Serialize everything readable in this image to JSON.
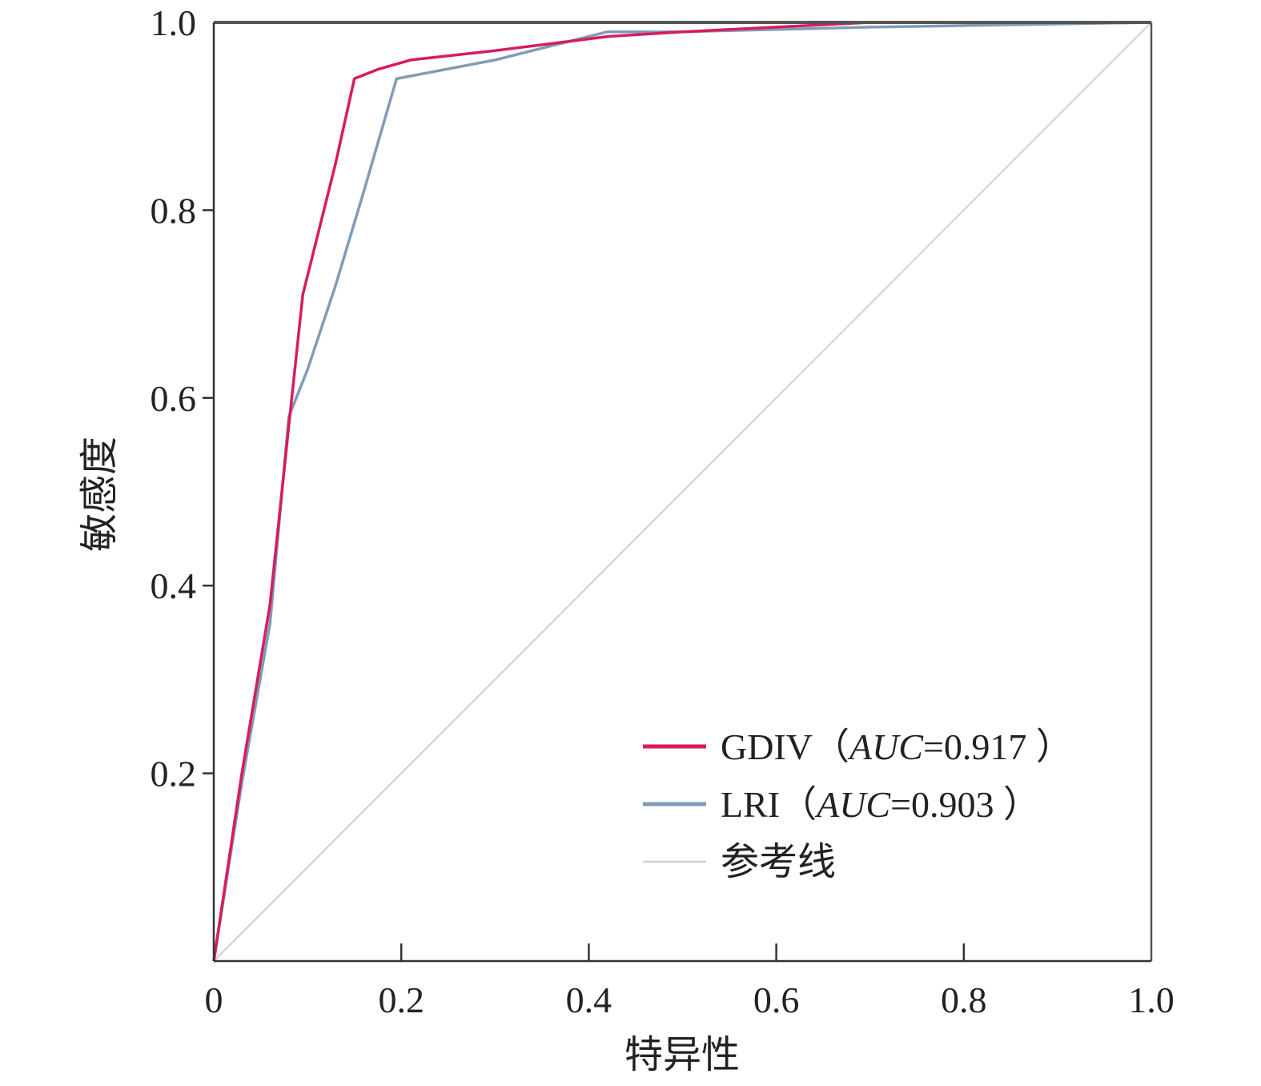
{
  "chart_data": {
    "type": "line",
    "title": "",
    "xlabel": "特异性",
    "ylabel": "敏感度",
    "xlim": [
      0,
      1.0
    ],
    "ylim": [
      0,
      1.0
    ],
    "grid": false,
    "x_ticks": [
      "0",
      "0.2",
      "0.4",
      "0.6",
      "0.8",
      "1.0"
    ],
    "y_ticks": [
      "0.2",
      "0.4",
      "0.6",
      "0.8",
      "1.0"
    ],
    "x_tick_values": [
      0,
      0.2,
      0.4,
      0.6,
      0.8,
      1.0
    ],
    "y_tick_values": [
      0.2,
      0.4,
      0.6,
      0.8,
      1.0
    ],
    "legend_position": "bottom-right",
    "series": [
      {
        "name": "GDIV",
        "label_prefix": "GDIV（",
        "label_italic": "AUC",
        "label_suffix": "=0.917 ）",
        "color": "#d81b60",
        "x": [
          0,
          0.03,
          0.06,
          0.08,
          0.095,
          0.11,
          0.13,
          0.15,
          0.175,
          0.21,
          0.3,
          0.42,
          0.5,
          0.7,
          1.0
        ],
        "y": [
          0,
          0.2,
          0.38,
          0.57,
          0.71,
          0.77,
          0.85,
          0.94,
          0.95,
          0.96,
          0.97,
          0.985,
          0.99,
          1.0,
          1.0
        ]
      },
      {
        "name": "LRI",
        "label_prefix": "LRI（",
        "label_italic": "AUC",
        "label_suffix": "=0.903 ）",
        "color": "#7f9cb8",
        "x": [
          0,
          0.03,
          0.06,
          0.08,
          0.1,
          0.13,
          0.16,
          0.195,
          0.3,
          0.42,
          0.5,
          0.7,
          1.0
        ],
        "y": [
          0,
          0.19,
          0.36,
          0.58,
          0.63,
          0.72,
          0.82,
          0.94,
          0.96,
          0.99,
          0.99,
          0.995,
          1.0
        ]
      },
      {
        "name": "参考线",
        "label_prefix": "参考线",
        "label_italic": "",
        "label_suffix": "",
        "color": "#d0d0d0",
        "x": [
          0,
          1.0
        ],
        "y": [
          0,
          1.0
        ]
      }
    ]
  }
}
